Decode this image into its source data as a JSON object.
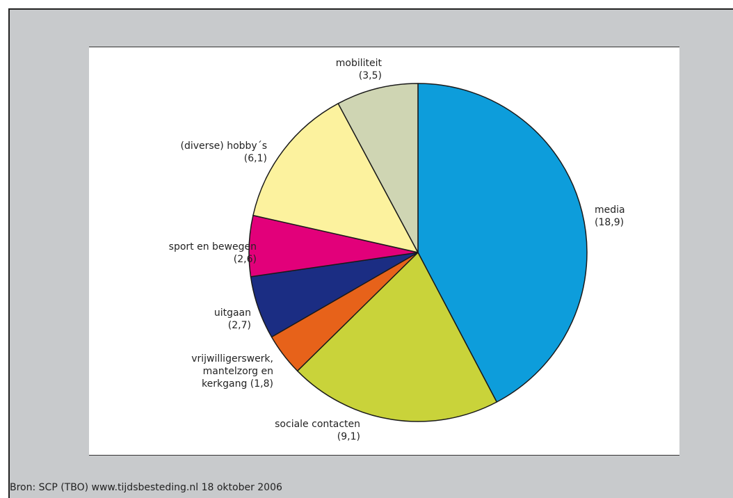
{
  "chart_data": {
    "type": "pie",
    "slices": [
      {
        "label_lines": [
          "media",
          "(18,9)"
        ],
        "value": 18.9,
        "color": "#0d9ddb"
      },
      {
        "label_lines": [
          "sociale contacten",
          "(9,1)"
        ],
        "value": 9.1,
        "color": "#c9d33a"
      },
      {
        "label_lines": [
          "vrijwilligerswerk,",
          "mantelzorg en",
          "kerkgang (1,8)"
        ],
        "value": 1.8,
        "color": "#e7621a"
      },
      {
        "label_lines": [
          "uitgaan",
          "(2,7)"
        ],
        "value": 2.7,
        "color": "#1b2d83"
      },
      {
        "label_lines": [
          "sport en bewegen",
          "(2,6)"
        ],
        "value": 2.6,
        "color": "#e2007a"
      },
      {
        "label_lines": [
          "(diverse) hobby´s",
          "(6,1)"
        ],
        "value": 6.1,
        "color": "#fcf29e"
      },
      {
        "label_lines": [
          "mobiliteit",
          "(3,5)"
        ],
        "value": 3.5,
        "color": "#cfd5b3"
      }
    ],
    "start": "top",
    "direction": "clockwise"
  },
  "source": "Bron: SCP (TBO) www.tijdsbesteding.nl 18 oktober 2006"
}
